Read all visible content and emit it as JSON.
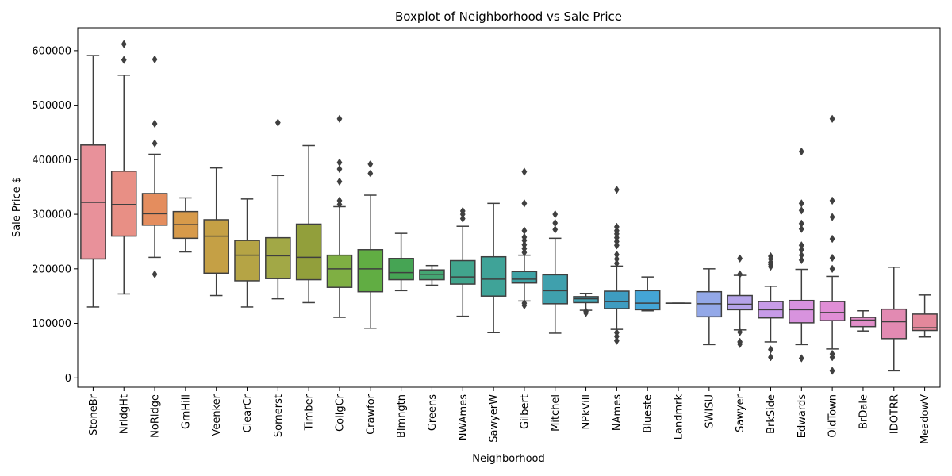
{
  "chart_data": {
    "type": "box",
    "title": "Boxplot of Neighborhood vs Sale Price",
    "xlabel": "Neighborhood",
    "ylabel": "Sale Price $",
    "ylim": [
      -17000,
      642000
    ],
    "yticks": [
      0,
      100000,
      200000,
      300000,
      400000,
      500000,
      600000
    ],
    "ytick_labels": [
      "0",
      "100000",
      "200000",
      "300000",
      "400000",
      "500000",
      "600000"
    ],
    "grid": false,
    "categories": [
      "StoneBr",
      "NridgHt",
      "NoRidge",
      "GrnHill",
      "Veenker",
      "ClearCr",
      "Somerst",
      "Timber",
      "CollgCr",
      "Crawfor",
      "Blmngtn",
      "Greens",
      "NWAmes",
      "SawyerW",
      "Gilbert",
      "Mitchel",
      "NPkVill",
      "NAmes",
      "Blueste",
      "Landmrk",
      "SWISU",
      "Sawyer",
      "BrkSide",
      "Edwards",
      "OldTown",
      "BrDale",
      "IDOTRR",
      "MeadowV"
    ],
    "colors": [
      "#e8919a",
      "#e88f85",
      "#e48d5e",
      "#d79a4a",
      "#c5a045",
      "#b5a445",
      "#a2a846",
      "#929f3b",
      "#7faf43",
      "#61ad43",
      "#46a454",
      "#45a673",
      "#41a58d",
      "#3fa398",
      "#3ea2a5",
      "#3fa0ad",
      "#41a6b7",
      "#3e9cc1",
      "#44a5d6",
      "#7ba4e0",
      "#93a8e8",
      "#b5a3e9",
      "#c79be8",
      "#d893de",
      "#e08ed6",
      "#e18ec9",
      "#e28ab2",
      "#e3889b"
    ],
    "boxes": [
      {
        "min": 130000,
        "q1": 218000,
        "median": 322000,
        "q3": 427000,
        "max": 591000,
        "outliers": []
      },
      {
        "min": 154000,
        "q1": 260000,
        "median": 318000,
        "q3": 379000,
        "max": 555000,
        "outliers": [
          583000,
          612000
        ]
      },
      {
        "min": 221000,
        "q1": 280000,
        "median": 301000,
        "q3": 338000,
        "max": 410000,
        "outliers": [
          190000,
          430000,
          466000,
          584000
        ]
      },
      {
        "min": 231000,
        "q1": 256000,
        "median": 281000,
        "q3": 305000,
        "max": 330000,
        "outliers": []
      },
      {
        "min": 151000,
        "q1": 192000,
        "median": 260000,
        "q3": 290000,
        "max": 385000,
        "outliers": []
      },
      {
        "min": 130000,
        "q1": 178000,
        "median": 225000,
        "q3": 252000,
        "max": 328000,
        "outliers": []
      },
      {
        "min": 145000,
        "q1": 182000,
        "median": 224000,
        "q3": 257000,
        "max": 371000,
        "outliers": [
          468000
        ]
      },
      {
        "min": 138000,
        "q1": 180000,
        "median": 221000,
        "q3": 282000,
        "max": 426000,
        "outliers": []
      },
      {
        "min": 111000,
        "q1": 166000,
        "median": 200000,
        "q3": 225000,
        "max": 314000,
        "outliers": [
          318000,
          325000,
          360000,
          383000,
          395000,
          475000
        ]
      },
      {
        "min": 91000,
        "q1": 158000,
        "median": 200000,
        "q3": 235000,
        "max": 335000,
        "outliers": [
          375000,
          392000
        ]
      },
      {
        "min": 160000,
        "q1": 180000,
        "median": 193000,
        "q3": 219000,
        "max": 265000,
        "outliers": []
      },
      {
        "min": 170000,
        "q1": 180000,
        "median": 190000,
        "q3": 198000,
        "max": 206000,
        "outliers": []
      },
      {
        "min": 113000,
        "q1": 172000,
        "median": 185000,
        "q3": 215000,
        "max": 278000,
        "outliers": [
          292000,
          300000,
          306000
        ]
      },
      {
        "min": 83000,
        "q1": 150000,
        "median": 181000,
        "q3": 222000,
        "max": 320000,
        "outliers": []
      },
      {
        "min": 141000,
        "q1": 174000,
        "median": 181000,
        "q3": 195000,
        "max": 225000,
        "outliers": [
          133000,
          137000,
          230000,
          237000,
          244000,
          252000,
          258000,
          270000,
          320000,
          378000
        ]
      },
      {
        "min": 82000,
        "q1": 136000,
        "median": 160000,
        "q3": 189000,
        "max": 256000,
        "outliers": [
          272000,
          284000,
          300000
        ]
      },
      {
        "min": 124000,
        "q1": 138000,
        "median": 145000,
        "q3": 149000,
        "max": 155000,
        "outliers": [
          119000,
          122000
        ]
      },
      {
        "min": 89000,
        "q1": 127000,
        "median": 140000,
        "q3": 159000,
        "max": 205000,
        "outliers": [
          68000,
          76000,
          83000,
          210000,
          218000,
          226000,
          243000,
          250000,
          257000,
          264000,
          270000,
          277000,
          345000
        ]
      },
      {
        "min": 123000,
        "q1": 125000,
        "median": 137000,
        "q3": 160000,
        "max": 185000,
        "outliers": []
      },
      {
        "min": 137000,
        "q1": 137000,
        "median": 137000,
        "q3": 137000,
        "max": 137000,
        "outliers": []
      },
      {
        "min": 61000,
        "q1": 112000,
        "median": 136000,
        "q3": 158000,
        "max": 200000,
        "outliers": []
      },
      {
        "min": 88000,
        "q1": 125000,
        "median": 135000,
        "q3": 151000,
        "max": 188000,
        "outliers": [
          62000,
          66000,
          84000,
          190000,
          219000
        ]
      },
      {
        "min": 66000,
        "q1": 110000,
        "median": 125000,
        "q3": 140000,
        "max": 168000,
        "outliers": [
          38000,
          52000,
          204000,
          208000,
          212000,
          218000,
          223000
        ]
      },
      {
        "min": 61000,
        "q1": 101000,
        "median": 125000,
        "q3": 142000,
        "max": 199000,
        "outliers": [
          36000,
          216000,
          225000,
          235000,
          243000,
          273000,
          283000,
          307000,
          320000,
          415000
        ]
      },
      {
        "min": 53000,
        "q1": 105000,
        "median": 120000,
        "q3": 140000,
        "max": 186000,
        "outliers": [
          13000,
          38000,
          44000,
          200000,
          220000,
          255000,
          295000,
          325000,
          475000
        ]
      },
      {
        "min": 86000,
        "q1": 94000,
        "median": 106000,
        "q3": 111000,
        "max": 123000,
        "outliers": []
      },
      {
        "min": 13000,
        "q1": 72000,
        "median": 103000,
        "q3": 126000,
        "max": 203000,
        "outliers": []
      },
      {
        "min": 75000,
        "q1": 87000,
        "median": 92000,
        "q3": 117000,
        "max": 152000,
        "outliers": []
      }
    ]
  }
}
